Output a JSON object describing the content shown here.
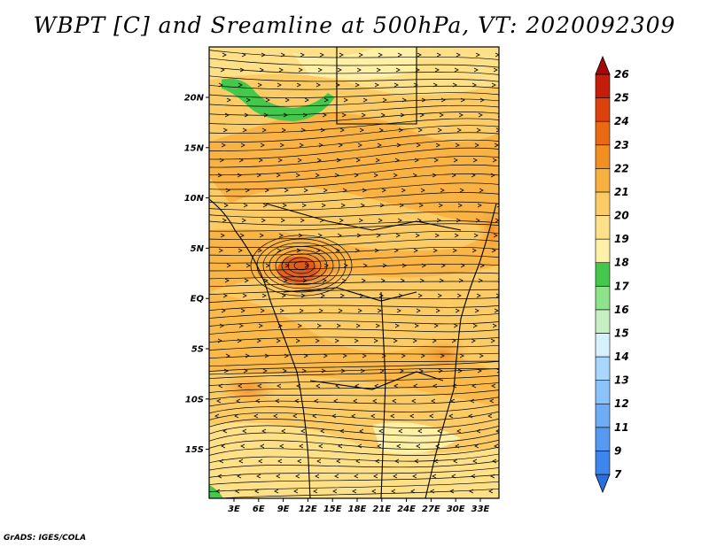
{
  "title": "WBPT [C] and Sreamline at 500hPa, VT: 2020092309",
  "footer": "GrADS: IGES/COLA",
  "map": {
    "variable": "WBPT [C]",
    "overlay": "Streamline",
    "level": "500hPa",
    "valid_time": "2020092309",
    "lat_labels": [
      "20N",
      "15N",
      "10N",
      "5N",
      "EQ",
      "5S",
      "10S",
      "15S"
    ],
    "lon_labels": [
      "3E",
      "6E",
      "9E",
      "12E",
      "15E",
      "18E",
      "21E",
      "24E",
      "27E",
      "30E",
      "33E"
    ]
  },
  "colorbar": {
    "levels": [
      "7",
      "9",
      "11",
      "12",
      "13",
      "14",
      "15",
      "16",
      "17",
      "18",
      "19",
      "20",
      "21",
      "22",
      "23",
      "24",
      "25",
      "26"
    ],
    "colors": [
      "#2a6fe0",
      "#3f86ec",
      "#5599f2",
      "#6eadf6",
      "#8bc2fa",
      "#a9d6fc",
      "#d6f0fd",
      "#c6efc2",
      "#8ce38a",
      "#44c84c",
      "#fff0a8",
      "#fde087",
      "#fbcc66",
      "#f8b040",
      "#f28f22",
      "#ea6a14",
      "#dc420c",
      "#c41e0a",
      "#a50808"
    ]
  }
}
